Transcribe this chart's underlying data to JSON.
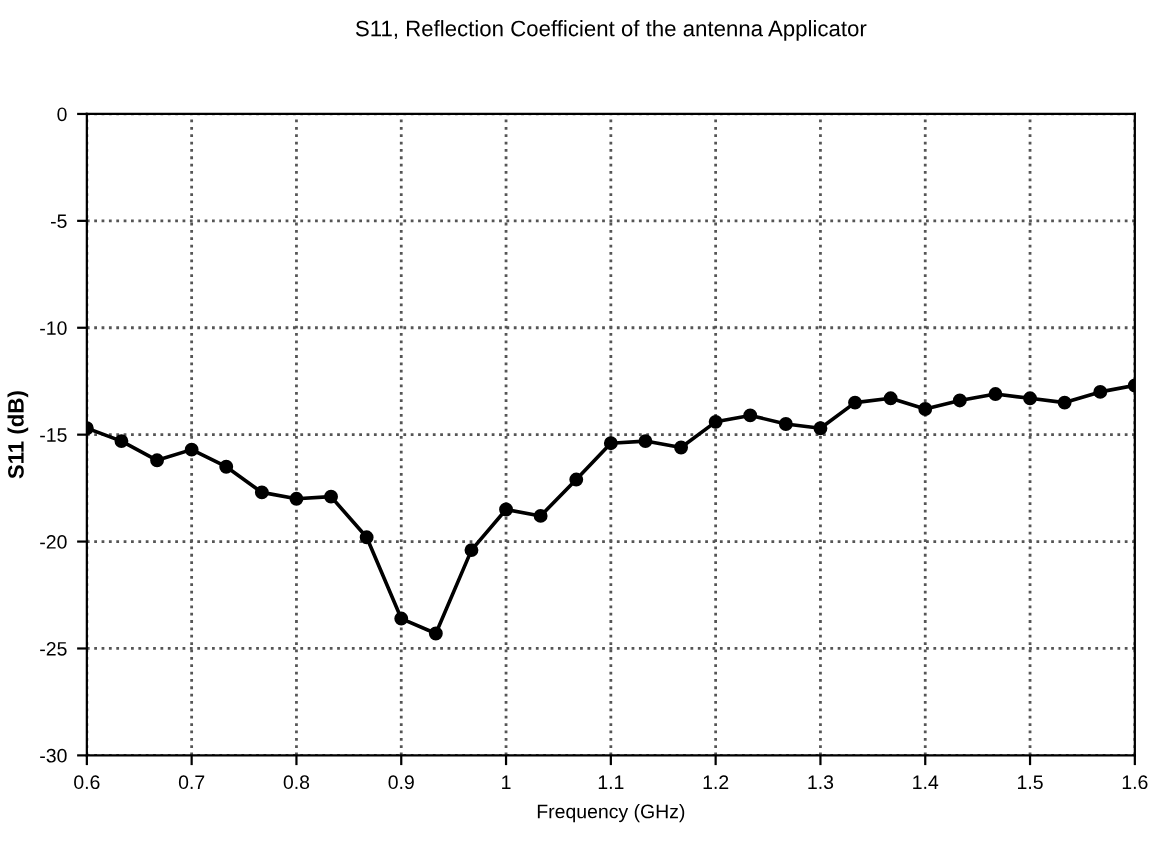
{
  "chart_data": {
    "type": "line",
    "title": "S11, Reflection Coefficient of the antenna Applicator",
    "xlabel": "Frequency (GHz)",
    "ylabel": "S11 (dB)",
    "x": [
      0.6,
      0.633,
      0.667,
      0.7,
      0.733,
      0.767,
      0.8,
      0.833,
      0.867,
      0.9,
      0.933,
      0.967,
      1.0,
      1.033,
      1.067,
      1.1,
      1.133,
      1.167,
      1.2,
      1.233,
      1.267,
      1.3,
      1.333,
      1.367,
      1.4,
      1.433,
      1.467,
      1.5,
      1.533,
      1.567,
      1.6
    ],
    "series": [
      {
        "color": "#000000",
        "values": [
          -14.7,
          -15.3,
          -16.2,
          -15.7,
          -16.5,
          -17.7,
          -18.0,
          -17.9,
          -19.8,
          -23.6,
          -24.3,
          -20.4,
          -18.5,
          -18.8,
          -17.1,
          -15.4,
          -15.3,
          -15.6,
          -14.4,
          -14.1,
          -14.5,
          -14.7,
          -13.5,
          -13.3,
          -13.8,
          -13.4,
          -13.1,
          -13.3,
          -13.5,
          -13.0,
          -12.7
        ]
      }
    ],
    "xlim": [
      0.6,
      1.6
    ],
    "xticks": [
      {
        "value": 0.6,
        "label": "0.6"
      },
      {
        "value": 0.7,
        "label": "0.7"
      },
      {
        "value": 0.8,
        "label": "0.8"
      },
      {
        "value": 0.9,
        "label": "0.9"
      },
      {
        "value": 1.0,
        "label": "1"
      },
      {
        "value": 1.1,
        "label": "1.1"
      },
      {
        "value": 1.2,
        "label": "1.2"
      },
      {
        "value": 1.3,
        "label": "1.3"
      },
      {
        "value": 1.4,
        "label": "1.4"
      },
      {
        "value": 1.5,
        "label": "1.5"
      },
      {
        "value": 1.6,
        "label": "1.6"
      }
    ],
    "ylim": [
      -30,
      0
    ],
    "yticks": [
      -30,
      -25,
      -20,
      -15,
      -10,
      -5,
      0
    ],
    "grid": true,
    "marker": "circle",
    "line_style": "solid"
  }
}
